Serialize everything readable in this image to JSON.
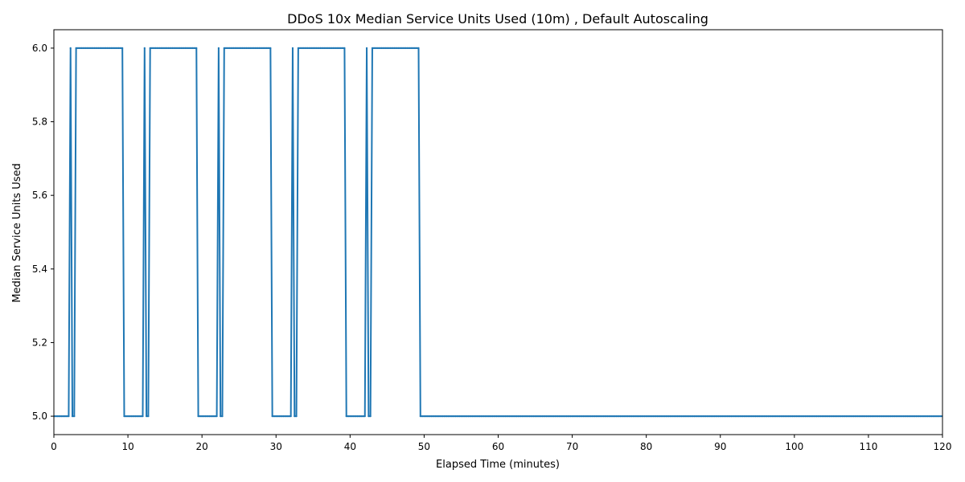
{
  "chart_data": {
    "type": "line",
    "title": "DDoS 10x Median Service Units Used (10m) , Default Autoscaling",
    "xlabel": "Elapsed Time (minutes)",
    "ylabel": "Median Service Units Used",
    "xlim": [
      0,
      120
    ],
    "ylim": [
      4.95,
      6.05
    ],
    "xticks": [
      0,
      10,
      20,
      30,
      40,
      50,
      60,
      70,
      80,
      90,
      100,
      110,
      120
    ],
    "yticks": [
      5.0,
      5.2,
      5.4,
      5.6,
      5.8,
      6.0
    ],
    "ytick_labels": [
      "5.0",
      "5.2",
      "5.4",
      "5.6",
      "5.8",
      "6.0"
    ],
    "grid": false,
    "legend": "none",
    "marker_interval_minutes": 0.25,
    "series": [
      {
        "color": "#1f77b4",
        "points": [
          [
            0,
            5.0
          ],
          [
            2.0,
            5.0
          ],
          [
            2.25,
            6.0
          ],
          [
            2.5,
            5.0
          ],
          [
            2.75,
            5.0
          ],
          [
            3.0,
            6.0
          ],
          [
            9.25,
            6.0
          ],
          [
            9.5,
            5.0
          ],
          [
            12.0,
            5.0
          ],
          [
            12.25,
            6.0
          ],
          [
            12.5,
            5.0
          ],
          [
            12.75,
            5.0
          ],
          [
            13.0,
            6.0
          ],
          [
            19.25,
            6.0
          ],
          [
            19.5,
            5.0
          ],
          [
            22.0,
            5.0
          ],
          [
            22.25,
            6.0
          ],
          [
            22.5,
            5.0
          ],
          [
            22.75,
            5.0
          ],
          [
            23.0,
            6.0
          ],
          [
            29.25,
            6.0
          ],
          [
            29.5,
            5.0
          ],
          [
            32.0,
            5.0
          ],
          [
            32.25,
            6.0
          ],
          [
            32.5,
            5.0
          ],
          [
            32.75,
            5.0
          ],
          [
            33.0,
            6.0
          ],
          [
            39.25,
            6.0
          ],
          [
            39.5,
            5.0
          ],
          [
            42.0,
            5.0
          ],
          [
            42.25,
            6.0
          ],
          [
            42.5,
            5.0
          ],
          [
            42.75,
            5.0
          ],
          [
            43.0,
            6.0
          ],
          [
            49.25,
            6.0
          ],
          [
            49.5,
            5.0
          ],
          [
            120.0,
            5.0
          ]
        ]
      }
    ]
  }
}
